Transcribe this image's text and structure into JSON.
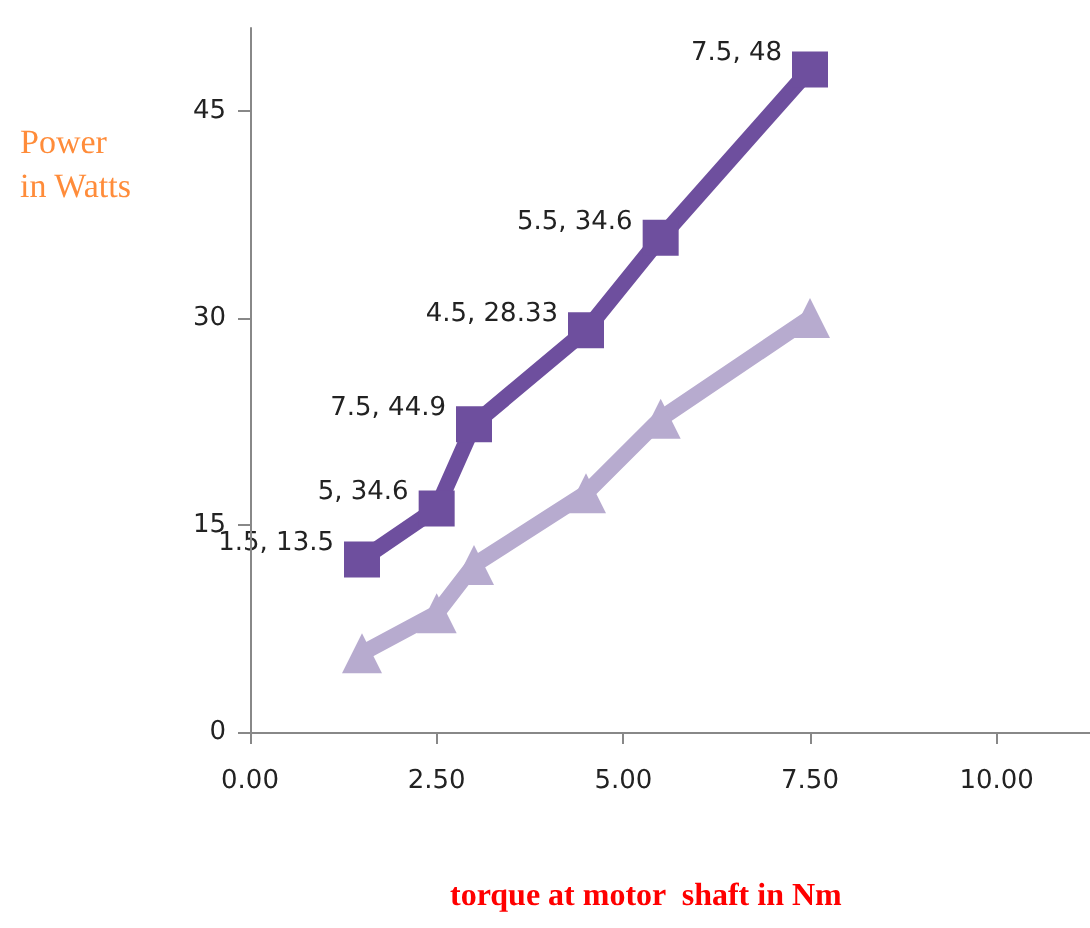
{
  "chart_data": {
    "type": "line",
    "xlabel": "torque at motor  shaft in Nm",
    "ylabel": "Power\nin Watts",
    "xlim": [
      0,
      11.25
    ],
    "xticks": [
      {
        "value": 0,
        "label": "0.00"
      },
      {
        "value": 2.5,
        "label": "2.50"
      },
      {
        "value": 5,
        "label": "5.00"
      },
      {
        "value": 7.5,
        "label": "7.50"
      },
      {
        "value": 10,
        "label": "10.00"
      }
    ],
    "ylim": [
      0,
      51
    ],
    "yticks": [
      0,
      15,
      30,
      45
    ],
    "grid": false,
    "annotations": [
      "1.5, 13.5",
      "5, 34.6",
      "7.5, 44.9",
      "4.5, 28.33",
      "5.5, 34.6",
      "7.5, 48"
    ],
    "series": [
      {
        "color": "#6e4f9e",
        "marker": "square",
        "x": [
          1.5,
          2.5,
          3,
          4.5,
          5.5,
          7.5
        ],
        "values": [
          12.5,
          16.2,
          22.3,
          29.1,
          35.8,
          48
        ]
      },
      {
        "color": "#b7abcf",
        "marker": "triangle",
        "x": [
          1.5,
          2.5,
          3,
          4.5,
          5.5,
          7.5
        ],
        "values": [
          5.7,
          8.6,
          12.1,
          17.3,
          22.7,
          30
        ]
      }
    ]
  }
}
